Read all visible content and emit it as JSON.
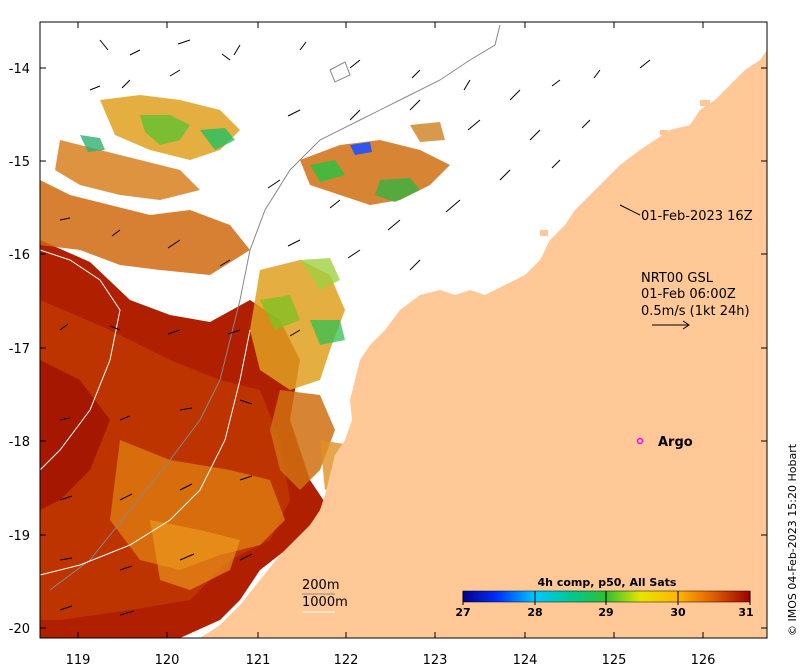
{
  "map": {
    "lon_range": [
      118.6,
      126.7
    ],
    "lat_range": [
      -20.1,
      -13.5
    ],
    "lon_ticks": [
      119,
      120,
      121,
      122,
      123,
      124,
      125,
      126
    ],
    "lat_ticks": [
      -14,
      -15,
      -16,
      -17,
      -18,
      -19,
      -20
    ],
    "lon_tick_labels": [
      "119",
      "120",
      "121",
      "122",
      "123",
      "124",
      "125",
      "126"
    ],
    "lat_tick_labels": [
      "-14",
      "-15",
      "-16",
      "-17",
      "-18",
      "-19",
      "-20"
    ]
  },
  "annotations": {
    "timestamp": "01-Feb-2023 16Z",
    "current_source": "NRT00 GSL",
    "current_time": "01-Feb 06:00Z",
    "current_scale": "0.5m/s (1kt 24h)",
    "argo_label": "Argo",
    "argo_position": {
      "lon": 125.3,
      "lat": -18.0
    },
    "depth_200": "200m",
    "depth_1000": "1000m"
  },
  "colorbar": {
    "title": "4h comp, p50, All Sats",
    "min": 27,
    "max": 31,
    "tick_labels": [
      "27",
      "28",
      "29",
      "30",
      "31"
    ]
  },
  "credit": "© IMOS 04-Feb-2023 15:20 Hobart",
  "colors": {
    "land": "#ffc896",
    "cloud": "#ffffff",
    "argo": "#ff00ff",
    "contour": "#888888"
  }
}
